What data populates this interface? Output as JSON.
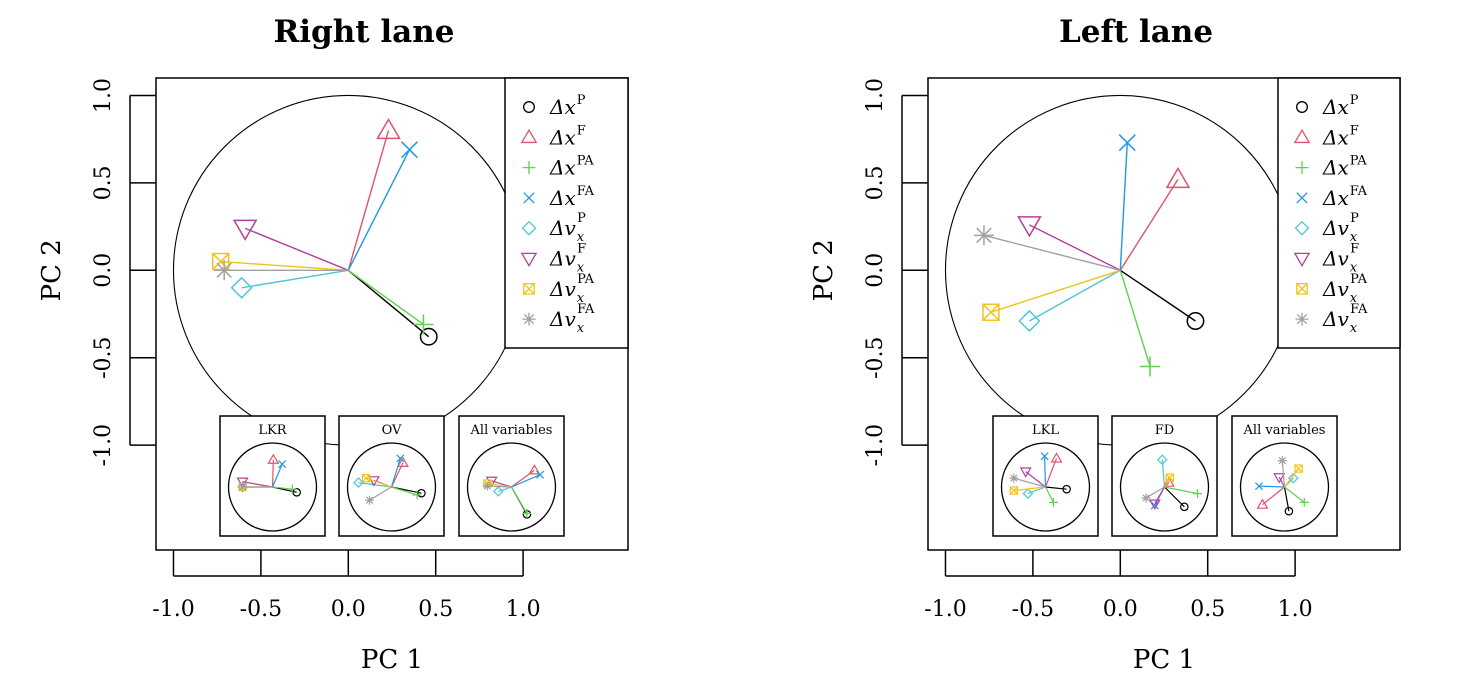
{
  "chart_data": [
    {
      "type": "scatter",
      "title": "Right lane",
      "xlabel": "PC 1",
      "ylabel": "PC 2",
      "xlim": [
        -1.1,
        1.6
      ],
      "ylim": [
        -1.6,
        1.1
      ],
      "xticks": [
        -1.0,
        -0.5,
        0.0,
        0.5,
        1.0
      ],
      "xtick_labels": [
        "-1.0",
        "-0.5",
        "0.0",
        "0.5",
        "1.0"
      ],
      "yticks": [
        -1.0,
        -0.5,
        0.0,
        0.5,
        1.0
      ],
      "ytick_labels": [
        "-1.0",
        "-0.5",
        "0.0",
        "0.5",
        "1.0"
      ],
      "unit_circle": true,
      "legend_position": "top-right",
      "series": [
        {
          "name": "Δx^P",
          "x": [
            0.46
          ],
          "y": [
            -0.38
          ]
        },
        {
          "name": "Δx^F",
          "x": [
            0.23
          ],
          "y": [
            0.8
          ]
        },
        {
          "name": "Δx^PA",
          "x": [
            0.43
          ],
          "y": [
            -0.31
          ]
        },
        {
          "name": "Δx^FA",
          "x": [
            0.35
          ],
          "y": [
            0.69
          ]
        },
        {
          "name": "Δv_x^P",
          "x": [
            -0.61
          ],
          "y": [
            -0.1
          ]
        },
        {
          "name": "Δv_x^F",
          "x": [
            -0.59
          ],
          "y": [
            0.24
          ]
        },
        {
          "name": "Δv_x^PA",
          "x": [
            -0.73
          ],
          "y": [
            0.05
          ]
        },
        {
          "name": "Δv_x^FA",
          "x": [
            -0.71
          ],
          "y": [
            0.0
          ]
        }
      ],
      "insets": [
        {
          "title": "LKR",
          "x": [
            0.55,
            0.02,
            0.45,
            0.22,
            -0.68,
            -0.68,
            -0.68,
            -0.68
          ],
          "y": [
            -0.12,
            0.62,
            -0.05,
            0.52,
            0.0,
            0.12,
            0.0,
            0.0
          ]
        },
        {
          "title": "OV",
          "x": [
            0.68,
            0.26,
            0.58,
            0.2,
            -0.75,
            -0.4,
            -0.58,
            -0.5
          ],
          "y": [
            -0.14,
            0.55,
            -0.18,
            0.65,
            0.1,
            0.15,
            0.2,
            -0.3
          ]
        },
        {
          "title": "All variables",
          "x": [
            0.35,
            0.52,
            0.35,
            0.65,
            -0.3,
            -0.45,
            -0.55,
            -0.55
          ],
          "y": [
            -0.62,
            0.38,
            -0.6,
            0.28,
            -0.1,
            0.14,
            0.08,
            0.02
          ]
        }
      ]
    },
    {
      "type": "scatter",
      "title": "Left lane",
      "xlabel": "PC 1",
      "ylabel": "PC 2",
      "xlim": [
        -1.1,
        1.6
      ],
      "ylim": [
        -1.6,
        1.1
      ],
      "xticks": [
        -1.0,
        -0.5,
        0.0,
        0.5,
        1.0
      ],
      "xtick_labels": [
        "-1.0",
        "-0.5",
        "0.0",
        "0.5",
        "1.0"
      ],
      "yticks": [
        -1.0,
        -0.5,
        0.0,
        0.5,
        1.0
      ],
      "ytick_labels": [
        "-1.0",
        "-0.5",
        "0.0",
        "0.5",
        "1.0"
      ],
      "unit_circle": true,
      "legend_position": "top-right",
      "series": [
        {
          "name": "Δx^P",
          "x": [
            0.43
          ],
          "y": [
            -0.29
          ]
        },
        {
          "name": "Δx^F",
          "x": [
            0.33
          ],
          "y": [
            0.52
          ]
        },
        {
          "name": "Δx^PA",
          "x": [
            0.17
          ],
          "y": [
            -0.55
          ]
        },
        {
          "name": "Δx^FA",
          "x": [
            0.04
          ],
          "y": [
            0.73
          ]
        },
        {
          "name": "Δv_x^P",
          "x": [
            -0.52
          ],
          "y": [
            -0.29
          ]
        },
        {
          "name": "Δv_x^F",
          "x": [
            -0.52
          ],
          "y": [
            0.26
          ]
        },
        {
          "name": "Δv_x^PA",
          "x": [
            -0.74
          ],
          "y": [
            -0.24
          ]
        },
        {
          "name": "Δv_x^FA",
          "x": [
            -0.78
          ],
          "y": [
            0.2
          ]
        }
      ],
      "insets": [
        {
          "title": "LKL",
          "x": [
            0.48,
            0.25,
            0.18,
            -0.02,
            -0.4,
            -0.45,
            -0.72,
            -0.72
          ],
          "y": [
            -0.05,
            0.65,
            -0.35,
            0.7,
            -0.15,
            0.35,
            -0.08,
            0.2
          ]
        },
        {
          "title": "FD",
          "x": [
            0.45,
            0.1,
            0.75,
            -0.22,
            -0.05,
            -0.22,
            0.12,
            -0.42
          ],
          "y": [
            -0.45,
            0.1,
            -0.15,
            -0.42,
            0.62,
            -0.38,
            0.21,
            -0.25
          ]
        },
        {
          "title": "All variables",
          "x": [
            0.1,
            -0.5,
            0.45,
            -0.58,
            0.2,
            -0.12,
            0.32,
            -0.05
          ],
          "y": [
            -0.55,
            -0.4,
            -0.35,
            0.02,
            0.2,
            0.22,
            0.42,
            0.6
          ]
        }
      ]
    }
  ],
  "legend": [
    {
      "base": "Δx",
      "sup": "P",
      "sub": ""
    },
    {
      "base": "Δx",
      "sup": "F",
      "sub": ""
    },
    {
      "base": "Δx",
      "sup": "PA",
      "sub": ""
    },
    {
      "base": "Δx",
      "sup": "FA",
      "sub": ""
    },
    {
      "base": "Δv",
      "sup": "P",
      "sub": "x"
    },
    {
      "base": "Δv",
      "sup": "F",
      "sub": "x"
    },
    {
      "base": "Δv",
      "sup": "PA",
      "sub": "x"
    },
    {
      "base": "Δv",
      "sup": "FA",
      "sub": "x"
    }
  ],
  "colors": [
    "#000000",
    "#df536b",
    "#61d04f",
    "#2297e6",
    "#28e2e5",
    "#cd0bbc",
    "#f5c710",
    "#9e9e9e"
  ],
  "series_colors": [
    "#000000",
    "#df536b",
    "#61d04f",
    "#2297e6",
    "#4cc7d3",
    "#b2409b",
    "#f2c418",
    "#a0a0a0"
  ],
  "markers": [
    "circle",
    "triangle-up",
    "plus",
    "cross",
    "diamond",
    "triangle-down",
    "square-x",
    "asterisk"
  ]
}
